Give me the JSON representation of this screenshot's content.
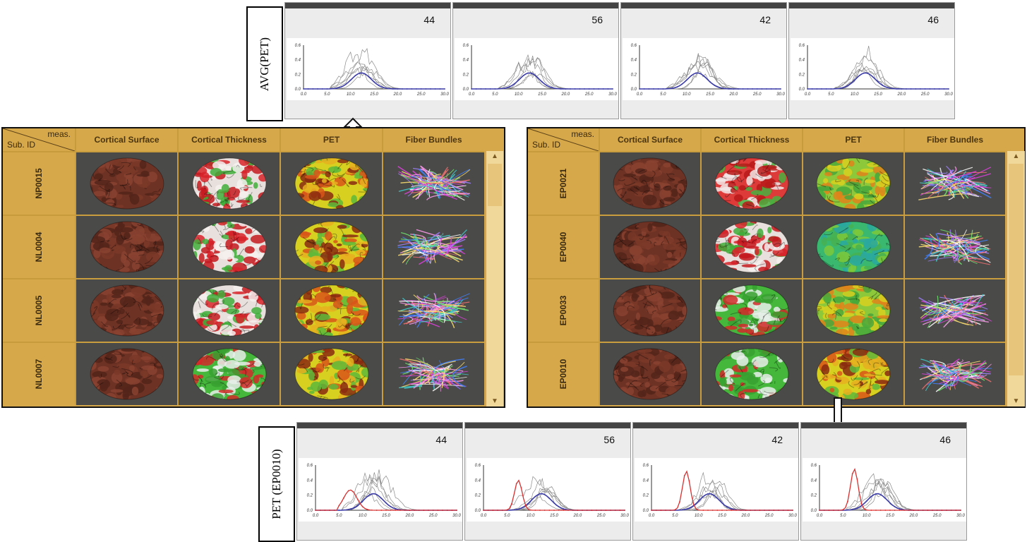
{
  "top_strip": {
    "label": "AVG(PET)",
    "panels": [
      {
        "value": "44"
      },
      {
        "value": "56"
      },
      {
        "value": "42"
      },
      {
        "value": "46"
      }
    ]
  },
  "bottom_strip": {
    "label": "PET (EP0010)",
    "panels": [
      {
        "value": "44"
      },
      {
        "value": "56"
      },
      {
        "value": "42"
      },
      {
        "value": "46"
      }
    ]
  },
  "chart_axis": {
    "x_ticks": [
      "0.0",
      "5.0",
      "10.0",
      "15.0",
      "20.0",
      "25.0",
      "30.0"
    ],
    "y_ticks": [
      "0.0",
      "0.2",
      "0.4",
      "0.6"
    ]
  },
  "left_table": {
    "corner_top": "meas.",
    "corner_bottom": "Sub. ID",
    "columns": [
      "Cortical Surface",
      "Cortical Thickness",
      "PET",
      "Fiber Bundles"
    ],
    "rows": [
      "NP0015",
      "NL0004",
      "NL0005",
      "NL0007"
    ]
  },
  "right_table": {
    "corner_top": "meas.",
    "corner_bottom": "Sub. ID",
    "columns": [
      "Cortical Surface",
      "Cortical Thickness",
      "PET",
      "Fiber Bundles"
    ],
    "rows": [
      "EP0021",
      "EP0040",
      "EP0033",
      "EP0010"
    ]
  },
  "scroll_icons": {
    "up": "chevron-up-icon",
    "down": "chevron-down-icon"
  },
  "colors": {
    "table_bg": "#d6a84a",
    "cell_bg": "#4a4a48",
    "avg_line": "#3a3aa8",
    "subject_line": "#d93030",
    "gray_line": "#8a8a8a"
  }
}
